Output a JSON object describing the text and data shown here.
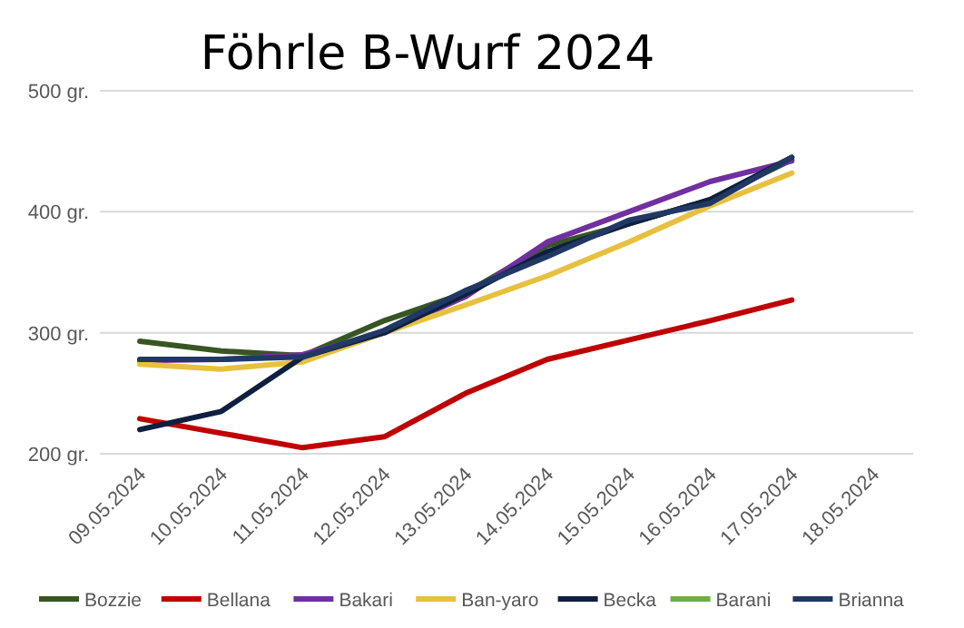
{
  "chart_data": {
    "type": "line",
    "title": "Föhrle B-Wurf 2024",
    "categories": [
      "09.05.2024",
      "10.05.2024",
      "11.05.2024",
      "12.05.2024",
      "13.05.2024",
      "14.05.2024",
      "15.05.2024",
      "16.05.2024",
      "17.05.2024",
      "18.05.2024"
    ],
    "ylim": [
      200,
      500
    ],
    "yticks": [
      {
        "value": 200,
        "label": "200 gr."
      },
      {
        "value": 300,
        "label": "300 gr."
      },
      {
        "value": 400,
        "label": "400 gr."
      },
      {
        "value": 500,
        "label": "500 gr."
      }
    ],
    "grid": "y",
    "legend": "bottom",
    "marker": "none",
    "series": [
      {
        "name": "Bozzie",
        "color": "#375623",
        "values": [
          293,
          285,
          281,
          310,
          333,
          372,
          390,
          410,
          443,
          null
        ]
      },
      {
        "name": "Bellana",
        "color": "#c00000",
        "values": [
          229,
          217,
          205,
          214,
          250,
          278,
          294,
          310,
          327,
          null
        ]
      },
      {
        "name": "Bakari",
        "color": "#7030a0",
        "values": [
          277,
          278,
          282,
          300,
          330,
          375,
          400,
          425,
          442,
          null
        ]
      },
      {
        "name": "Ban-yaro",
        "color": "#e8c040",
        "values": [
          274,
          270,
          276,
          300,
          323,
          347,
          375,
          405,
          432,
          null
        ]
      },
      {
        "name": "Becka",
        "color": "#0f1f3f",
        "values": [
          220,
          235,
          280,
          300,
          332,
          367,
          390,
          410,
          445,
          null
        ]
      },
      {
        "name": "Barani",
        "color": "#70ad47",
        "values": [
          null,
          null,
          null,
          null,
          null,
          null,
          null,
          null,
          null,
          null
        ]
      },
      {
        "name": "Brianna",
        "color": "#203864",
        "values": [
          278,
          278,
          280,
          302,
          335,
          363,
          393,
          407,
          445,
          null
        ]
      }
    ]
  }
}
